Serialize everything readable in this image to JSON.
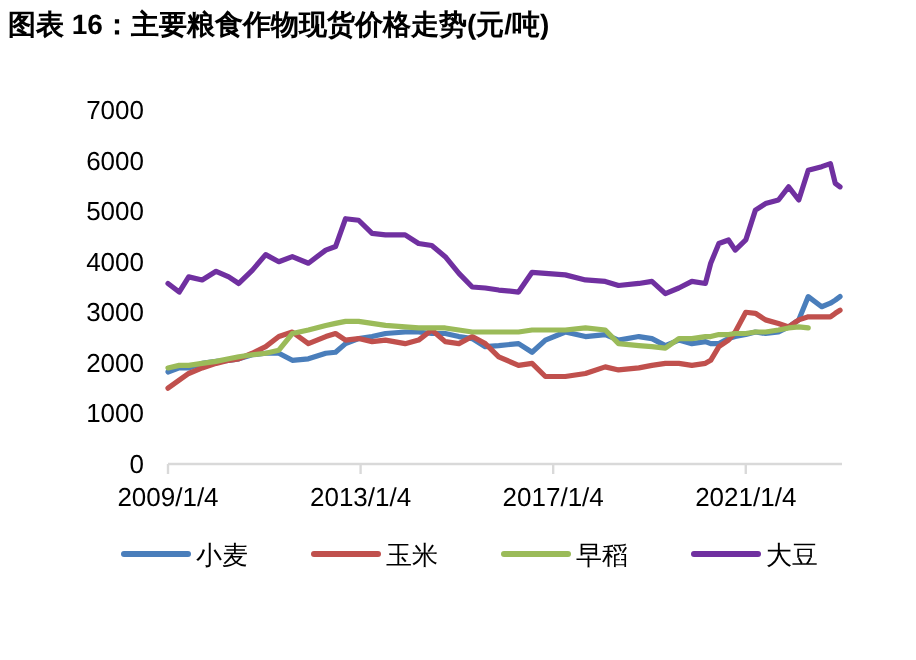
{
  "chart_data": {
    "type": "line",
    "title": "图表 16：主要粮食作物现货价格走势(元/吨)",
    "x": [
      "2009-01-04",
      "2009-03-30",
      "2009-06-10",
      "2009-09-20",
      "2010-01-04",
      "2010-04-10",
      "2010-06-25",
      "2010-10-05",
      "2011-01-15",
      "2011-04-25",
      "2011-08-05",
      "2011-12-05",
      "2012-04-15",
      "2012-06-28",
      "2012-09-12",
      "2012-12-20",
      "2013-04-01",
      "2013-07-12",
      "2013-12-08",
      "2014-03-20",
      "2014-06-28",
      "2014-10-08",
      "2015-01-20",
      "2015-05-01",
      "2015-08-08",
      "2015-11-18",
      "2016-04-16",
      "2016-07-28",
      "2016-11-06",
      "2017-04-06",
      "2017-09-06",
      "2018-02-03",
      "2018-05-15",
      "2018-10-16",
      "2019-01-23",
      "2019-05-05",
      "2019-08-15",
      "2019-11-22",
      "2020-03-04",
      "2020-04-13",
      "2020-06-14",
      "2020-08-26",
      "2020-10-16",
      "2021-01-04",
      "2021-03-18",
      "2021-06-03",
      "2021-09-09",
      "2021-11-25",
      "2022-02-10",
      "2022-04-23",
      "2022-08-03",
      "2022-10-08",
      "2022-11-14",
      "2022-12-20"
    ],
    "series": [
      {
        "name": "小麦",
        "color": "#4a7ebb",
        "values": [
          1820,
          1900,
          1900,
          1990,
          2030,
          2050,
          2080,
          2160,
          2190,
          2190,
          2050,
          2080,
          2190,
          2210,
          2380,
          2480,
          2520,
          2580,
          2610,
          2610,
          2580,
          2580,
          2520,
          2480,
          2320,
          2340,
          2380,
          2210,
          2450,
          2610,
          2520,
          2560,
          2450,
          2520,
          2480,
          2340,
          2450,
          2380,
          2420,
          2380,
          2380,
          2480,
          2520,
          2560,
          2610,
          2580,
          2610,
          2710,
          2850,
          3310,
          3110,
          3180,
          3240,
          3310
        ]
      },
      {
        "name": "玉米",
        "color": "#c0504d",
        "values": [
          1500,
          1660,
          1790,
          1900,
          1990,
          2050,
          2080,
          2190,
          2320,
          2520,
          2610,
          2380,
          2520,
          2580,
          2450,
          2480,
          2420,
          2450,
          2380,
          2450,
          2650,
          2420,
          2380,
          2520,
          2380,
          2120,
          1950,
          1990,
          1730,
          1730,
          1790,
          1920,
          1860,
          1900,
          1950,
          1990,
          1990,
          1950,
          1990,
          2050,
          2320,
          2450,
          2610,
          3000,
          2980,
          2850,
          2780,
          2710,
          2850,
          2910,
          2910,
          2910,
          2980,
          3040
        ]
      },
      {
        "name": "早稻",
        "color": "#9bbb59",
        "values": [
          1900,
          1950,
          1950,
          1990,
          2030,
          2080,
          2120,
          2160,
          2190,
          2250,
          2580,
          2650,
          2740,
          2780,
          2820,
          2820,
          2780,
          2740,
          2710,
          2690,
          2690,
          2690,
          2650,
          2610,
          2610,
          2610,
          2610,
          2650,
          2650,
          2650,
          2690,
          2650,
          2380,
          2340,
          2320,
          2290,
          2480,
          2480,
          2520,
          2520,
          2560,
          2560,
          2580,
          2580,
          2610,
          2610,
          2650,
          2690,
          2710,
          2690,
          null,
          null,
          null,
          null
        ]
      },
      {
        "name": "大豆",
        "color": "#7030a0",
        "values": [
          3570,
          3400,
          3700,
          3640,
          3810,
          3700,
          3570,
          3830,
          4140,
          4000,
          4100,
          3970,
          4230,
          4300,
          4850,
          4820,
          4560,
          4530,
          4530,
          4360,
          4320,
          4100,
          3770,
          3500,
          3480,
          3440,
          3400,
          3790,
          3770,
          3740,
          3640,
          3610,
          3530,
          3570,
          3610,
          3370,
          3480,
          3610,
          3570,
          3970,
          4360,
          4430,
          4230,
          4430,
          5020,
          5150,
          5220,
          5480,
          5220,
          5810,
          5880,
          5940,
          5550,
          5480
        ]
      }
    ],
    "xlim": [
      "2009-01-04",
      "2023-01-04"
    ],
    "xticks": [
      {
        "value": "2009-01-04",
        "label": "2009/1/4"
      },
      {
        "value": "2013-01-04",
        "label": "2013/1/4"
      },
      {
        "value": "2017-01-04",
        "label": "2017/1/4"
      },
      {
        "value": "2021-01-04",
        "label": "2021/1/4"
      }
    ],
    "ylim": [
      0,
      7000
    ],
    "yticks": [
      0,
      1000,
      2000,
      3000,
      4000,
      5000,
      6000,
      7000
    ],
    "legend": "bottom"
  }
}
